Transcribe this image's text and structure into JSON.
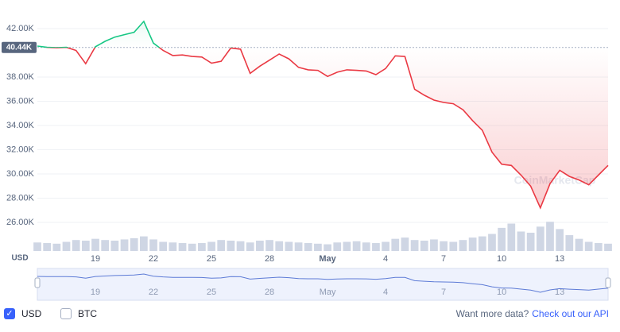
{
  "chart_data": {
    "type": "line",
    "y_label": "USD",
    "watermark": "CoinMarketCap",
    "categories": [
      null,
      null,
      null,
      null,
      null,
      null,
      "19",
      null,
      null,
      null,
      null,
      null,
      "22",
      null,
      null,
      null,
      null,
      null,
      "25",
      null,
      null,
      null,
      null,
      null,
      "28",
      null,
      null,
      null,
      null,
      null,
      "May",
      null,
      null,
      null,
      null,
      null,
      "4",
      null,
      null,
      null,
      null,
      null,
      "7",
      null,
      null,
      null,
      null,
      null,
      "10",
      null,
      null,
      null,
      null,
      null,
      "13",
      null,
      null,
      null,
      null,
      null
    ],
    "values": [
      40560,
      40450,
      40420,
      40450,
      40200,
      39100,
      40500,
      40950,
      41300,
      41500,
      41700,
      42600,
      40800,
      40200,
      39780,
      39820,
      39700,
      39650,
      39150,
      39300,
      40400,
      40300,
      38300,
      38900,
      39400,
      39900,
      39500,
      38800,
      38600,
      38550,
      38050,
      38400,
      38600,
      38550,
      38500,
      38200,
      38700,
      39750,
      39700,
      37000,
      36500,
      36100,
      35900,
      35800,
      35300,
      34400,
      33600,
      31800,
      30800,
      30700,
      29900,
      29000,
      27200,
      29200,
      30300,
      29800,
      29500,
      29100,
      29900,
      30700
    ],
    "color_up": "#16c784",
    "color_down": "#ea3943",
    "reference": {
      "value": 40440,
      "label": "40.44K"
    },
    "ylim": [
      23640,
      43200
    ],
    "yticks": [
      {
        "value": 26000,
        "label": "26.00K"
      },
      {
        "value": 28000,
        "label": "28.00K"
      },
      {
        "value": 30000,
        "label": "30.00K"
      },
      {
        "value": 32000,
        "label": "32.00K"
      },
      {
        "value": 34000,
        "label": "34.00K"
      },
      {
        "value": 36000,
        "label": "36.00K"
      },
      {
        "value": 38000,
        "label": "38.00K"
      },
      {
        "value": 42000,
        "label": "42.00K"
      }
    ],
    "grid": true,
    "volume": {
      "axis": "y2",
      "color": "#cfd6e4",
      "values": [
        14,
        13,
        12,
        15,
        18,
        17,
        20,
        18,
        17,
        19,
        21,
        24,
        19,
        15,
        14,
        13,
        12,
        13,
        15,
        18,
        17,
        16,
        14,
        17,
        18,
        16,
        15,
        14,
        13,
        12,
        11,
        14,
        15,
        16,
        14,
        13,
        15,
        20,
        22,
        18,
        17,
        19,
        16,
        15,
        18,
        22,
        24,
        28,
        38,
        45,
        32,
        30,
        40,
        48,
        36,
        26,
        20,
        15,
        13,
        12
      ]
    },
    "y2lim": [
      0,
      60
    ]
  },
  "controls": {
    "currencies": [
      "USD",
      "BTC"
    ],
    "selected": "USD",
    "cta_text": "Want more data?",
    "cta_link": "Check out our API"
  }
}
